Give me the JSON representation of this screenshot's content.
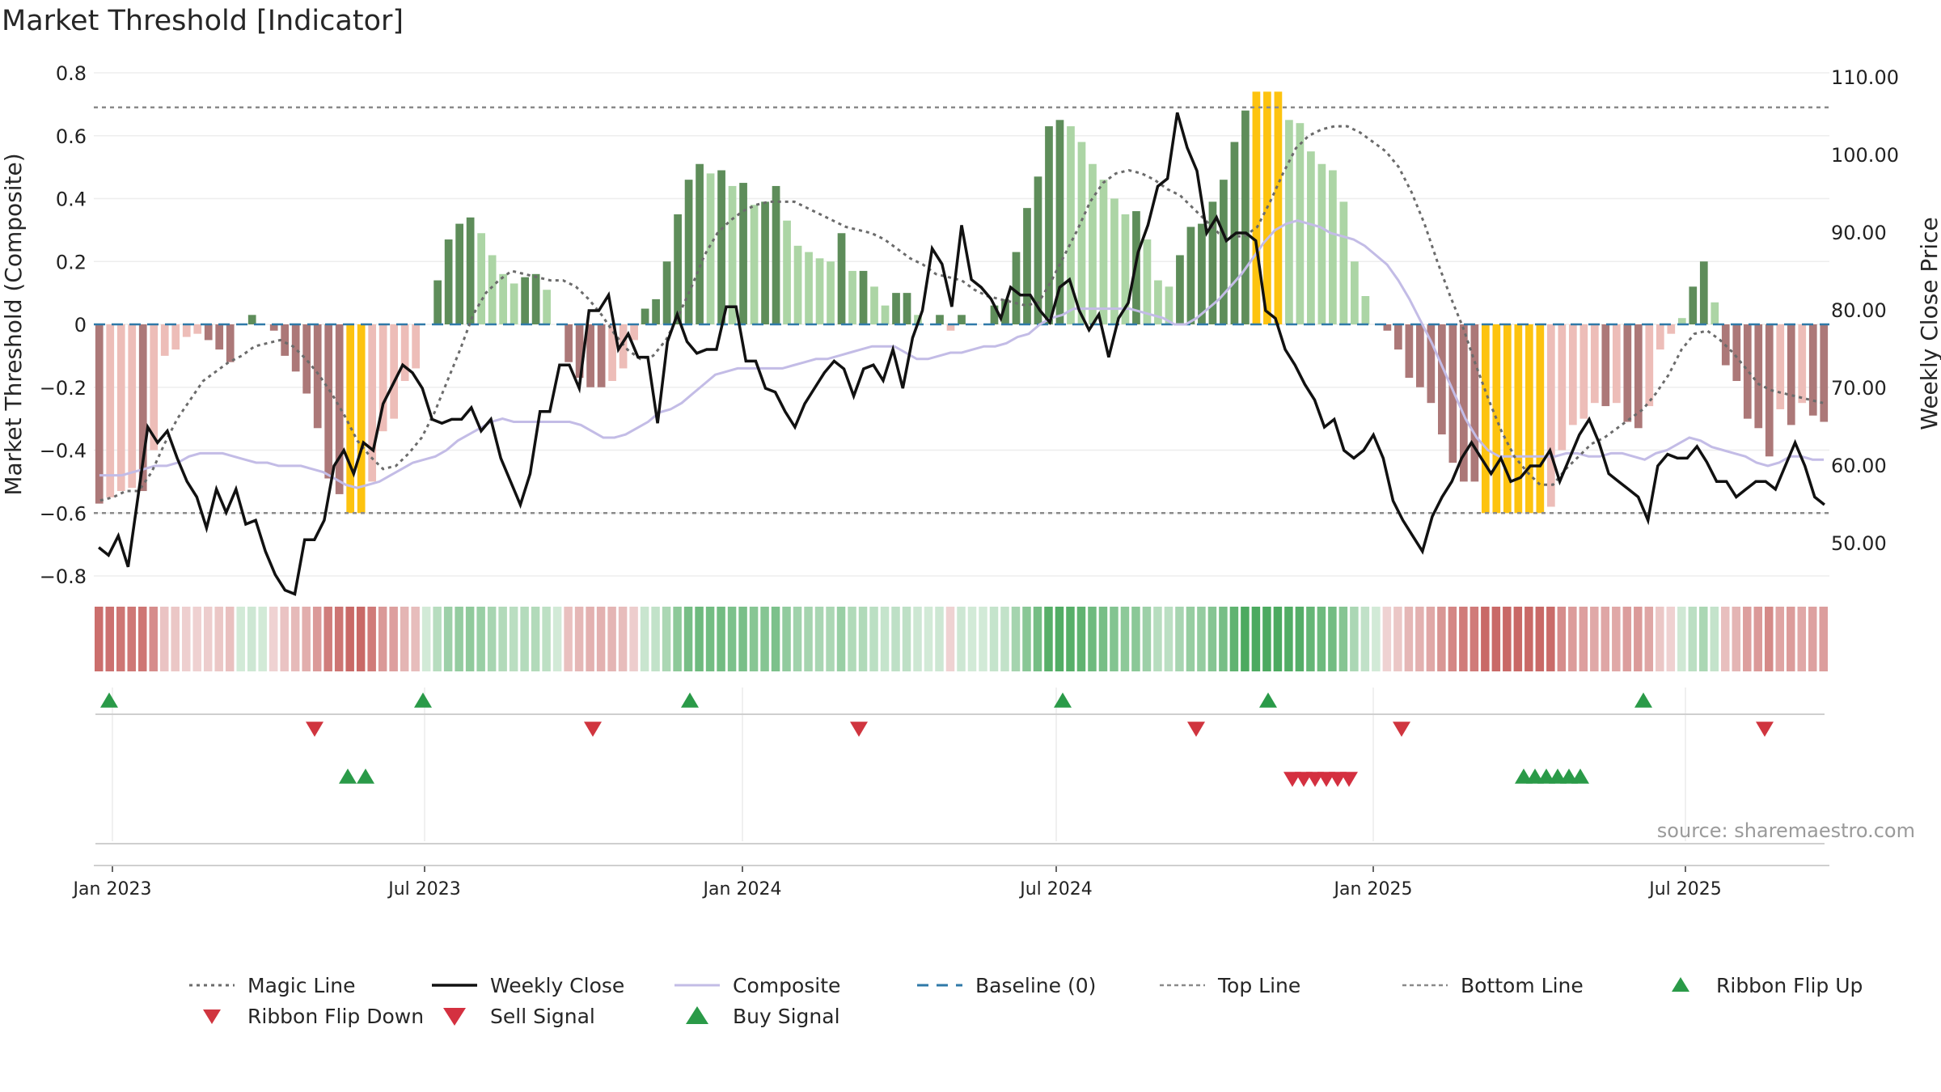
{
  "title": "Market Threshold [Indicator]",
  "source": "source: sharemaestro.com",
  "colors": {
    "bar_green_dark": "#5e8d5a",
    "bar_green_light": "#acd5a5",
    "bar_red_dark": "#ac7878",
    "bar_red_light": "#edbdb8",
    "bar_gold": "#fdc30f",
    "weekly_close": "#111111",
    "composite": "#c3bce6",
    "magic_line": "#6b6b6b",
    "baseline": "#2f79a8",
    "threshold_lines": "#8a8a8a",
    "buy": "#2a9a48",
    "sell": "#d43040"
  },
  "legend": [
    {
      "label": "Magic Line",
      "icon": "dotted-line"
    },
    {
      "label": "Weekly Close",
      "icon": "solid-line"
    },
    {
      "label": "Composite",
      "icon": "lavender-line"
    },
    {
      "label": "Baseline (0)",
      "icon": "dashed-line"
    },
    {
      "label": "Top Line",
      "icon": "dotted-line"
    },
    {
      "label": "Bottom Line",
      "icon": "dotted-line"
    },
    {
      "label": "Ribbon Flip Up",
      "icon": "triangle-up-icon"
    },
    {
      "label": "Ribbon Flip Down",
      "icon": "triangle-down-icon"
    },
    {
      "label": "Sell Signal",
      "icon": "triangle-down-icon"
    },
    {
      "label": "Buy Signal",
      "icon": "triangle-up-icon"
    }
  ],
  "chart_data": {
    "type": "bar",
    "x_labels": [
      "Jan 2023",
      "Jul 2023",
      "Jan 2024",
      "Jul 2024",
      "Jan 2025",
      "Jul 2025"
    ],
    "ylabel": "Market Threshold (Composite)",
    "y2label": "Weekly Close Price",
    "ylim": [
      -0.8,
      0.8
    ],
    "y_ticks": [
      "−0.8",
      "−0.6",
      "−0.4",
      "−0.2",
      "0",
      "0.2",
      "0.4",
      "0.6",
      "0.8"
    ],
    "y2lim": [
      50,
      110
    ],
    "y2_ticks": [
      "50.00",
      "60.00",
      "70.00",
      "80.00",
      "90.00",
      "100.00",
      "110.00"
    ],
    "top_line": 0.69,
    "bottom_line": -0.6,
    "composite_bars": [
      -0.57,
      -0.55,
      -0.53,
      -0.52,
      -0.53,
      -0.4,
      -0.1,
      -0.08,
      -0.04,
      -0.03,
      -0.05,
      -0.08,
      -0.12,
      0.0,
      0.03,
      0.0,
      -0.02,
      -0.1,
      -0.15,
      -0.22,
      -0.33,
      -0.49,
      -0.54,
      -0.6,
      -0.6,
      -0.5,
      -0.34,
      -0.3,
      -0.18,
      -0.14,
      0.0,
      0.14,
      0.27,
      0.32,
      0.34,
      0.29,
      0.22,
      0.16,
      0.13,
      0.15,
      0.16,
      0.11,
      0.0,
      -0.12,
      -0.17,
      -0.2,
      -0.2,
      -0.18,
      -0.14,
      -0.05,
      0.05,
      0.08,
      0.2,
      0.35,
      0.46,
      0.51,
      0.48,
      0.49,
      0.44,
      0.45,
      0.38,
      0.39,
      0.44,
      0.33,
      0.25,
      0.23,
      0.21,
      0.2,
      0.29,
      0.17,
      0.17,
      0.12,
      0.06,
      0.1,
      0.1,
      0.03,
      0.0,
      0.03,
      -0.02,
      0.03,
      0.0,
      0.0,
      0.06,
      0.08,
      0.23,
      0.37,
      0.47,
      0.63,
      0.65,
      0.63,
      0.58,
      0.51,
      0.46,
      0.4,
      0.35,
      0.36,
      0.27,
      0.14,
      0.12,
      0.22,
      0.31,
      0.32,
      0.39,
      0.46,
      0.58,
      0.68,
      0.74,
      0.74,
      0.74,
      0.65,
      0.64,
      0.55,
      0.51,
      0.49,
      0.39,
      0.2,
      0.09,
      0.0,
      -0.02,
      -0.08,
      -0.17,
      -0.2,
      -0.25,
      -0.35,
      -0.44,
      -0.5,
      -0.5,
      -0.6,
      -0.6,
      -0.6,
      -0.6,
      -0.6,
      -0.6,
      -0.58,
      -0.4,
      -0.32,
      -0.3,
      -0.25,
      -0.26,
      -0.25,
      -0.31,
      -0.33,
      -0.26,
      -0.08,
      -0.03,
      0.02,
      0.12,
      0.2,
      0.07,
      -0.13,
      -0.18,
      -0.3,
      -0.33,
      -0.42,
      -0.27,
      -0.32,
      -0.25,
      -0.29,
      -0.31
    ],
    "composite_line": [
      -0.48,
      -0.48,
      -0.48,
      -0.47,
      -0.46,
      -0.45,
      -0.45,
      -0.44,
      -0.42,
      -0.41,
      -0.41,
      -0.41,
      -0.42,
      -0.43,
      -0.44,
      -0.44,
      -0.45,
      -0.45,
      -0.45,
      -0.46,
      -0.47,
      -0.49,
      -0.51,
      -0.52,
      -0.51,
      -0.5,
      -0.48,
      -0.46,
      -0.44,
      -0.43,
      -0.42,
      -0.4,
      -0.37,
      -0.35,
      -0.33,
      -0.31,
      -0.3,
      -0.31,
      -0.31,
      -0.31,
      -0.31,
      -0.31,
      -0.31,
      -0.32,
      -0.34,
      -0.36,
      -0.36,
      -0.35,
      -0.33,
      -0.31,
      -0.28,
      -0.27,
      -0.25,
      -0.22,
      -0.19,
      -0.16,
      -0.15,
      -0.14,
      -0.14,
      -0.14,
      -0.14,
      -0.14,
      -0.13,
      -0.12,
      -0.11,
      -0.11,
      -0.1,
      -0.09,
      -0.08,
      -0.07,
      -0.07,
      -0.07,
      -0.09,
      -0.11,
      -0.11,
      -0.1,
      -0.09,
      -0.09,
      -0.08,
      -0.07,
      -0.07,
      -0.06,
      -0.04,
      -0.03,
      0.0,
      0.02,
      0.03,
      0.05,
      0.05,
      0.05,
      0.05,
      0.05,
      0.05,
      0.04,
      0.03,
      0.02,
      0.0,
      0.0,
      0.02,
      0.05,
      0.08,
      0.12,
      0.16,
      0.21,
      0.26,
      0.3,
      0.32,
      0.33,
      0.32,
      0.31,
      0.29,
      0.28,
      0.27,
      0.25,
      0.22,
      0.19,
      0.14,
      0.08,
      0.01,
      -0.06,
      -0.14,
      -0.22,
      -0.3,
      -0.36,
      -0.4,
      -0.42,
      -0.42,
      -0.42,
      -0.42,
      -0.42,
      -0.42,
      -0.41,
      -0.41,
      -0.42,
      -0.42,
      -0.41,
      -0.41,
      -0.42,
      -0.43,
      -0.41,
      -0.4,
      -0.38,
      -0.36,
      -0.37,
      -0.39,
      -0.4,
      -0.41,
      -0.42,
      -0.44,
      -0.45,
      -0.44,
      -0.42,
      -0.42,
      -0.43,
      -0.43
    ],
    "magic_line": [
      -0.56,
      -0.55,
      -0.53,
      -0.53,
      -0.47,
      -0.38,
      -0.3,
      -0.24,
      -0.18,
      -0.15,
      -0.12,
      -0.1,
      -0.07,
      -0.06,
      -0.05,
      -0.07,
      -0.11,
      -0.16,
      -0.22,
      -0.29,
      -0.37,
      -0.42,
      -0.46,
      -0.45,
      -0.41,
      -0.36,
      -0.28,
      -0.18,
      -0.08,
      0.03,
      0.1,
      0.14,
      0.17,
      0.16,
      0.15,
      0.14,
      0.14,
      0.12,
      0.08,
      0.03,
      -0.03,
      -0.08,
      -0.11,
      -0.1,
      -0.05,
      0.03,
      0.12,
      0.22,
      0.29,
      0.33,
      0.36,
      0.38,
      0.39,
      0.39,
      0.39,
      0.37,
      0.35,
      0.33,
      0.31,
      0.3,
      0.29,
      0.27,
      0.24,
      0.21,
      0.19,
      0.16,
      0.15,
      0.14,
      0.11,
      0.09,
      0.08,
      0.07,
      0.06,
      0.07,
      0.14,
      0.22,
      0.3,
      0.39,
      0.45,
      0.48,
      0.49,
      0.48,
      0.46,
      0.43,
      0.41,
      0.37,
      0.33,
      0.29,
      0.28,
      0.28,
      0.31,
      0.39,
      0.48,
      0.56,
      0.6,
      0.62,
      0.63,
      0.63,
      0.61,
      0.58,
      0.55,
      0.5,
      0.42,
      0.32,
      0.2,
      0.09,
      -0.01,
      -0.13,
      -0.24,
      -0.34,
      -0.42,
      -0.47,
      -0.51,
      -0.51,
      -0.46,
      -0.42,
      -0.38,
      -0.36,
      -0.33,
      -0.3,
      -0.27,
      -0.22,
      -0.16,
      -0.08,
      -0.03,
      -0.02,
      -0.05,
      -0.09,
      -0.14,
      -0.19,
      -0.21,
      -0.22,
      -0.23,
      -0.24,
      -0.25
    ],
    "weekly_close": [
      49.5,
      48.5,
      51,
      47,
      56,
      65,
      63,
      64.5,
      61,
      58,
      56,
      52,
      57,
      54,
      57,
      52.5,
      53,
      49,
      46,
      44,
      43.5,
      50.5,
      50.5,
      53,
      60,
      62,
      59,
      63,
      62,
      68,
      70.5,
      73,
      72,
      70,
      66,
      65.5,
      66,
      66,
      67.5,
      64.5,
      66,
      61,
      58,
      55,
      59,
      67,
      67,
      73,
      73,
      70,
      80,
      80,
      82,
      75,
      77,
      74,
      74,
      65.5,
      76,
      79.5,
      76,
      74.5,
      75,
      75,
      80.5,
      80.5,
      73.5,
      73.5,
      70,
      69.5,
      67,
      65,
      68,
      70,
      72,
      73.5,
      72.5,
      69,
      72.5,
      73,
      71,
      75,
      70,
      76.5,
      80,
      88,
      86,
      80.5,
      91,
      84,
      83,
      81.5,
      79,
      83,
      82,
      82,
      80,
      78.5,
      83,
      84,
      80,
      77.5,
      79.5,
      74,
      79,
      81,
      87.5,
      91,
      96,
      97,
      105.5,
      101,
      98,
      90,
      92,
      89,
      90,
      90,
      89,
      80,
      79,
      75,
      73,
      70.5,
      68.5,
      65,
      66,
      62,
      61,
      62,
      64,
      61,
      55.5,
      53,
      51,
      49,
      53.5,
      56,
      58,
      61,
      63,
      61,
      59,
      61,
      58,
      58.5,
      60,
      60,
      62,
      58,
      61,
      64,
      66,
      63,
      59,
      58,
      57,
      56,
      53,
      60,
      61.5,
      61,
      61,
      62.5,
      60.5,
      58,
      58,
      56,
      57,
      58,
      58,
      57,
      60,
      63,
      60,
      56,
      55
    ],
    "ribbon_flip_up": [
      "Jan 2023",
      "Jul 2023",
      "Jan 2024",
      "Jul 2024",
      "Nov 2024",
      "Jun 2025"
    ],
    "ribbon_flip_down": [
      "May 2023",
      "Nov 2023",
      "Mar 2024",
      "Sep 2024",
      "Jan 2025",
      "Sep 2025"
    ],
    "buy_signals": [
      "Jun 2023",
      "Jun 2023",
      "Apr 2025",
      "Apr 2025",
      "Apr 2025",
      "Apr 2025",
      "May 2025",
      "May 2025"
    ],
    "sell_signals": [
      "Nov 2024",
      "Nov 2024",
      "Nov 2024",
      "Dec 2024",
      "Dec 2024",
      "Dec 2024"
    ]
  }
}
